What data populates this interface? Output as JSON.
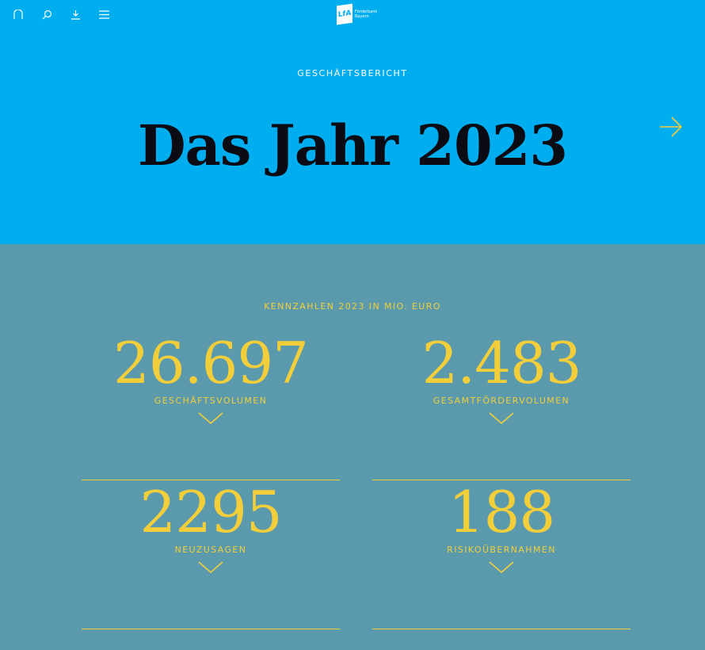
{
  "nav": {
    "icons": [
      "home-icon",
      "search-icon",
      "download-icon",
      "menu-icon"
    ]
  },
  "logo": {
    "mark": "LfA",
    "line1": "Förderbank",
    "line2": "Bayern"
  },
  "hero": {
    "kicker": "GESCHÄFTSBERICHT",
    "title": "Das Jahr 2023"
  },
  "figures": {
    "heading": "KENNZAHLEN 2023 IN MIO. EURO",
    "items": [
      {
        "value": "26.697",
        "label": "GESCHÄFTSVOLUMEN"
      },
      {
        "value": "2.483",
        "label": "GESAMTFÖRDERVOLUMEN"
      },
      {
        "value": "2295",
        "label": "NEUZUSAGEN"
      },
      {
        "value": "188",
        "label": "RISIKOÜBERNAHMEN"
      }
    ]
  },
  "colors": {
    "hero": "#00aeef",
    "body": "#5b9aad",
    "accent": "#f2cf3a"
  }
}
